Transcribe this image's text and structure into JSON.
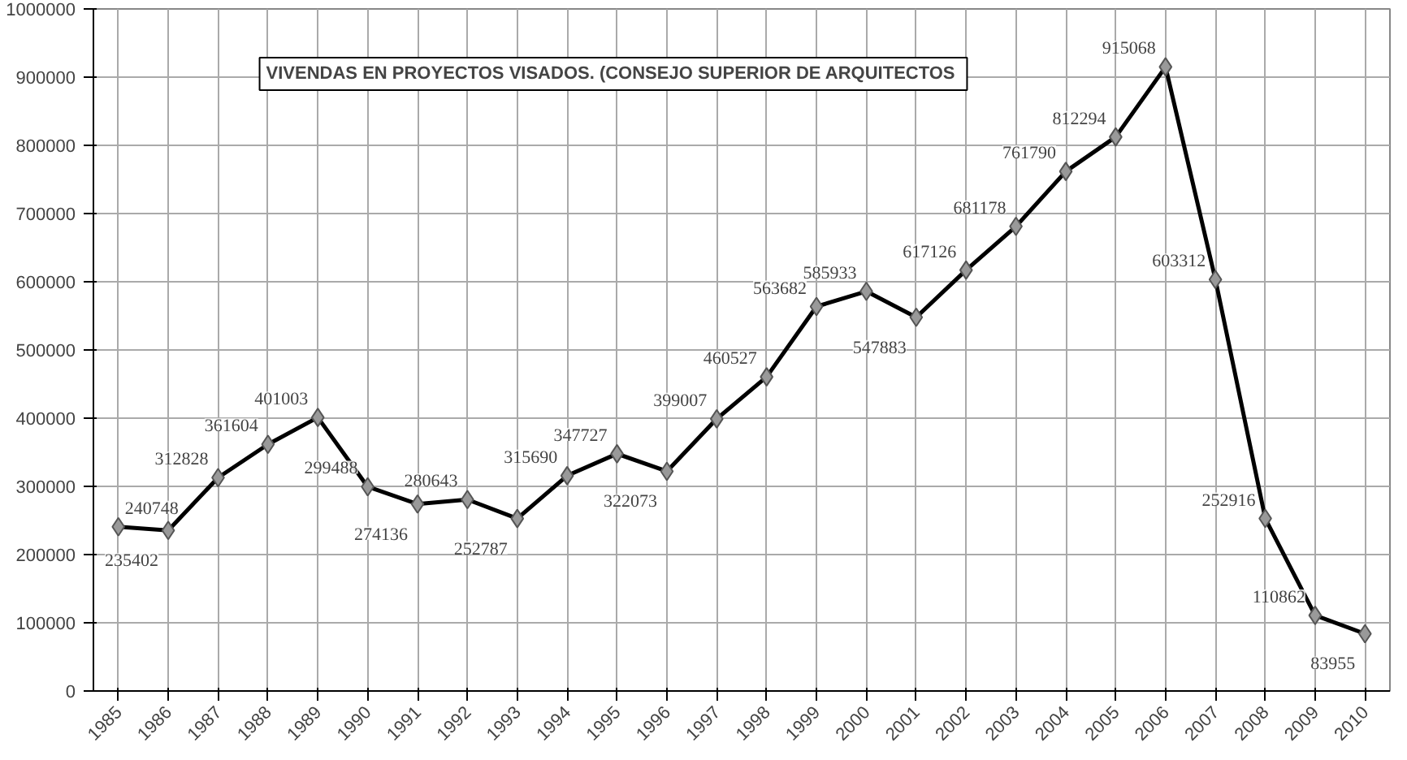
{
  "chart_data": {
    "type": "line",
    "title": "VIVENDAS  EN PROYECTOS VISADOS. (CONSEJO SUPERIOR DE ARQUITECTOS",
    "categories": [
      "1985",
      "1986",
      "1987",
      "1988",
      "1989",
      "1990",
      "1991",
      "1992",
      "1993",
      "1994",
      "1995",
      "1996",
      "1997",
      "1998",
      "1999",
      "2000",
      "2001",
      "2002",
      "2003",
      "2004",
      "2005",
      "2006",
      "2007",
      "2008",
      "2009",
      "2010"
    ],
    "series": [
      {
        "color": "#000000",
        "values": [
          240748,
          235402,
          312828,
          361604,
          401003,
          299488,
          274136,
          280643,
          252787,
          315690,
          347727,
          322073,
          399007,
          460527,
          563682,
          585933,
          547883,
          617126,
          681178,
          761790,
          812294,
          915068,
          603312,
          252916,
          110862,
          83955
        ]
      }
    ],
    "ylim": [
      0,
      1000000
    ],
    "yticks": [
      0,
      100000,
      200000,
      300000,
      400000,
      500000,
      600000,
      700000,
      800000,
      900000,
      1000000
    ],
    "grid": true,
    "marker": "diamond",
    "line_style": "solid",
    "data_labels": true
  }
}
